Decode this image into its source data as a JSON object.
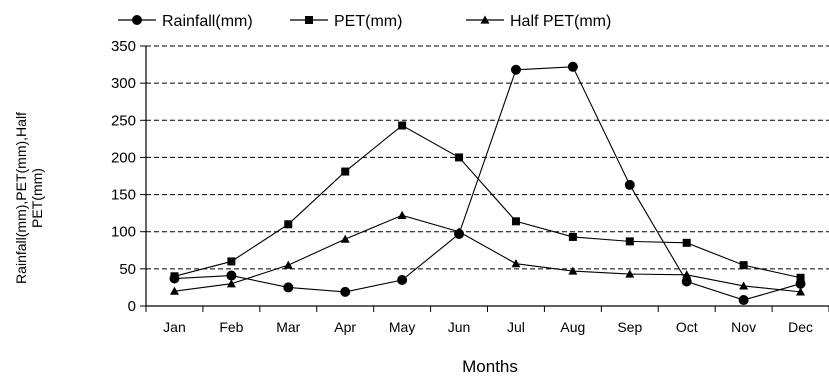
{
  "chart_data": {
    "type": "line",
    "title": "",
    "xlabel": "Months",
    "ylabel_lines": [
      "Rainfall(mm),PET(mm),Half",
      "PET(mm)"
    ],
    "ylim": [
      0,
      350
    ],
    "yticks": [
      0,
      50,
      100,
      150,
      200,
      250,
      300,
      350
    ],
    "grid": "horizontal dashed",
    "legend_position": "top",
    "categories": [
      "Jan",
      "Feb",
      "Mar",
      "Apr",
      "May",
      "Jun",
      "Jul",
      "Aug",
      "Sep",
      "Oct",
      "Nov",
      "Dec"
    ],
    "series": [
      {
        "name": "Rainfall(mm)",
        "marker": "circle",
        "values": [
          37,
          41,
          25,
          19,
          35,
          97,
          318,
          322,
          163,
          33,
          8,
          30
        ]
      },
      {
        "name": "PET(mm)",
        "marker": "square",
        "values": [
          40,
          60,
          110,
          181,
          243,
          200,
          114,
          93,
          87,
          85,
          55,
          38
        ]
      },
      {
        "name": "Half PET(mm)",
        "marker": "triangle",
        "values": [
          20,
          30,
          55,
          90,
          122,
          100,
          57,
          47,
          43,
          42,
          27,
          19
        ]
      }
    ]
  }
}
